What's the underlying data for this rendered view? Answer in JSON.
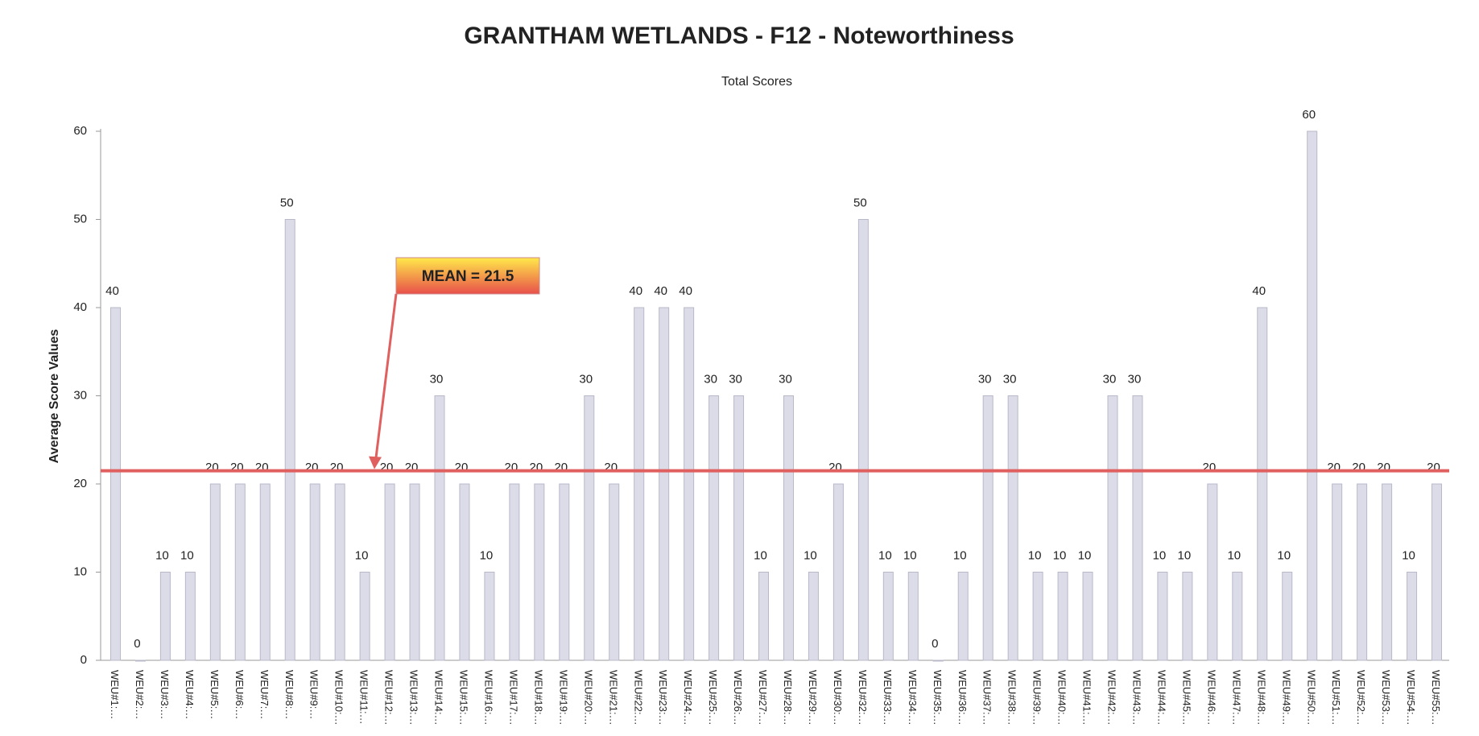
{
  "chart_data": {
    "type": "bar",
    "title": "GRANTHAM WETLANDS - F12 - Noteworthiness",
    "subtitle": "Total Scores",
    "y_label": "Average Score Values",
    "categories": [
      "WEU#1:…",
      "WEU#2:…",
      "WEU#3:…",
      "WEU#4:…",
      "WEU#5:…",
      "WEU#6:…",
      "WEU#7:…",
      "WEU#8:…",
      "WEU#9:…",
      "WEU#10:…",
      "WEU#11:…",
      "WEU#12:…",
      "WEU#13:…",
      "WEU#14:…",
      "WEU#15:…",
      "WEU#16:…",
      "WEU#17:…",
      "WEU#18:…",
      "WEU#19:…",
      "WEU#20:…",
      "WEU#21:…",
      "WEU#22:…",
      "WEU#23:…",
      "WEU#24:…",
      "WEU#25:…",
      "WEU#26:…",
      "WEU#27:…",
      "WEU#28:…",
      "WEU#29:…",
      "WEU#30:…",
      "WEU#32:…",
      "WEU#33:…",
      "WEU#34:…",
      "WEU#35:…",
      "WEU#36:…",
      "WEU#37:…",
      "WEU#38:…",
      "WEU#39:…",
      "WEU#40:…",
      "WEU#41:…",
      "WEU#42:…",
      "WEU#43:…",
      "WEU#44:…",
      "WEU#45:…",
      "WEU#46:…",
      "WEU#47:…",
      "WEU#48:…",
      "WEU#49:…",
      "WEU#50:…",
      "WEU#51:…",
      "WEU#52:…",
      "WEU#53:…",
      "WEU#54:…",
      "WEU#55:…"
    ],
    "values": [
      40,
      0,
      10,
      10,
      20,
      20,
      20,
      50,
      20,
      20,
      10,
      20,
      20,
      30,
      20,
      10,
      20,
      20,
      20,
      30,
      20,
      40,
      40,
      40,
      30,
      30,
      10,
      30,
      10,
      20,
      50,
      10,
      10,
      0,
      10,
      30,
      30,
      10,
      10,
      10,
      30,
      30,
      10,
      10,
      20,
      10,
      40,
      10,
      60,
      20,
      20,
      20,
      10,
      20
    ],
    "color": "#dcdce8",
    "ylim": [
      0,
      60
    ],
    "yticks": [
      0,
      10,
      20,
      30,
      40,
      50,
      60
    ],
    "mean_line": 21.5,
    "mean_color": "#e06060",
    "annotation": "MEAN = 21.5"
  }
}
